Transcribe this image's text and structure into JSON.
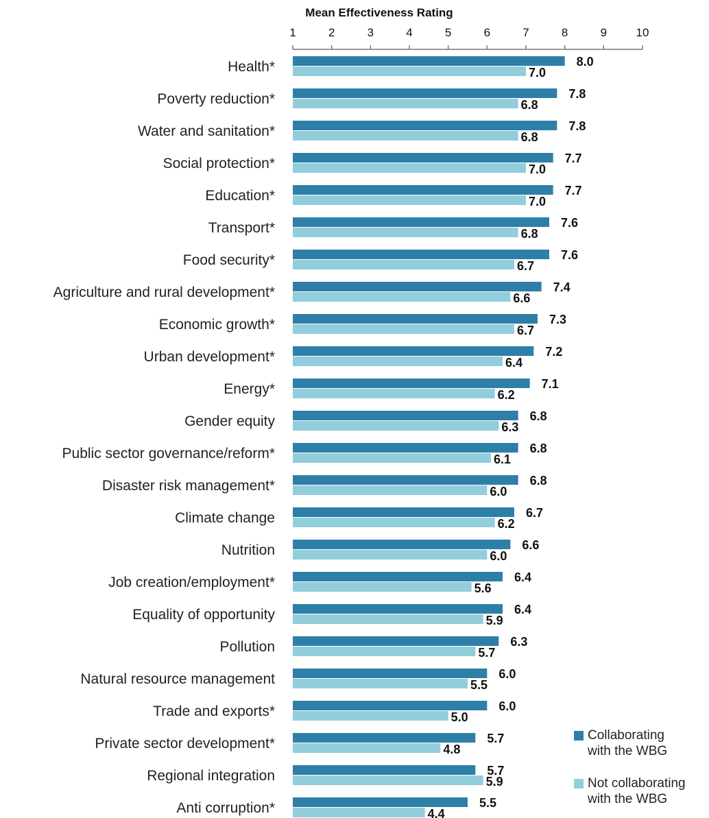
{
  "chart_data": {
    "type": "bar",
    "orientation": "horizontal",
    "title": "Mean Effectiveness Rating",
    "xlim": [
      1,
      10
    ],
    "xticks": [
      "1",
      "2",
      "3",
      "4",
      "5",
      "6",
      "7",
      "8",
      "9",
      "10"
    ],
    "categories": [
      "Health*",
      "Poverty reduction*",
      "Water and sanitation*",
      "Social protection*",
      "Education*",
      "Transport*",
      "Food security*",
      "Agriculture and rural development*",
      "Economic growth*",
      "Urban development*",
      "Energy*",
      "Gender equity",
      "Public sector governance/reform*",
      "Disaster risk management*",
      "Climate change",
      "Nutrition",
      "Job creation/employment*",
      "Equality of opportunity",
      "Pollution",
      "Natural resource management",
      "Trade and exports*",
      "Private sector development*",
      "Regional integration",
      "Anti corruption*"
    ],
    "series": [
      {
        "name": "Collaborating with the WBG",
        "legend_lines": [
          "Collaborating",
          "with the WBG"
        ],
        "color": "#2e7fa8",
        "values": [
          8.0,
          7.8,
          7.8,
          7.7,
          7.7,
          7.6,
          7.6,
          7.4,
          7.3,
          7.2,
          7.1,
          6.8,
          6.8,
          6.8,
          6.7,
          6.6,
          6.4,
          6.4,
          6.3,
          6.0,
          6.0,
          5.7,
          5.7,
          5.5
        ],
        "labels": [
          "8.0",
          "7.8",
          "7.8",
          "7.7",
          "7.7",
          "7.6",
          "7.6",
          "7.4",
          "7.3",
          "7.2",
          "7.1",
          "6.8",
          "6.8",
          "6.8",
          "6.7",
          "6.6",
          "6.4",
          "6.4",
          "6.3",
          "6.0",
          "6.0",
          "5.7",
          "5.7",
          "5.5"
        ]
      },
      {
        "name": "Not collaborating with the WBG",
        "legend_lines": [
          "Not collaborating",
          "with the WBG"
        ],
        "color": "#92cddc",
        "values": [
          7.0,
          6.8,
          6.8,
          7.0,
          7.0,
          6.8,
          6.7,
          6.6,
          6.7,
          6.4,
          6.2,
          6.3,
          6.1,
          6.0,
          6.2,
          6.0,
          5.6,
          5.9,
          5.7,
          5.5,
          5.0,
          4.8,
          5.9,
          4.4
        ],
        "labels": [
          "7.0",
          "6.8",
          "6.8",
          "7.0",
          "7.0",
          "6.8",
          "6.7",
          "6.6",
          "6.7",
          "6.4",
          "6.2",
          "6.3",
          "6.1",
          "6.0",
          "6.2",
          "6.0",
          "5.6",
          "5.9",
          "5.7",
          "5.5",
          "5.0",
          "4.8",
          "5.9",
          "4.4"
        ]
      }
    ],
    "legend_position": "bottom-right",
    "grid": false,
    "value_labels": true
  }
}
